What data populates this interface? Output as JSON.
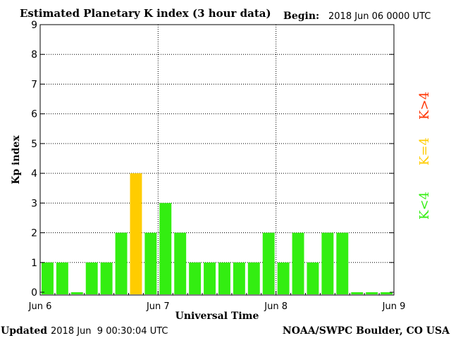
{
  "header": {
    "title": "Estimated Planetary K index (3 hour data)",
    "begin_label": "Begin:",
    "begin_value": "2018 Jun 06 0000 UTC"
  },
  "footer": {
    "updated_label": "Updated",
    "updated_value": "2018 Jun  9 00:30:04 UTC",
    "source": "NOAA/SWPC Boulder, CO USA"
  },
  "legend": [
    {
      "label": "K>4",
      "color": "#ff3300"
    },
    {
      "label": "K=4",
      "color": "#ffcc00"
    },
    {
      "label": "K<4",
      "color": "#33ee11"
    }
  ],
  "chart_data": {
    "type": "bar",
    "title": "Estimated Planetary K index (3 hour data)",
    "xlabel": "Universal Time",
    "ylabel": "Kp index",
    "ylim": [
      0,
      9
    ],
    "yticks": [
      "0",
      "1",
      "2",
      "3",
      "4",
      "5",
      "6",
      "7",
      "8",
      "9"
    ],
    "xticks": [
      "Jun 6",
      "Jun 7",
      "Jun 8",
      "Jun 9"
    ],
    "grid": true,
    "values": [
      1,
      1,
      0,
      1,
      1,
      2,
      4,
      2,
      3,
      2,
      1,
      1,
      1,
      1,
      1,
      2,
      1,
      2,
      1,
      2,
      2,
      0,
      0,
      0
    ],
    "colors": {
      "low": "#33ee11",
      "equal": "#ffcc00",
      "high": "#ff3300"
    }
  }
}
